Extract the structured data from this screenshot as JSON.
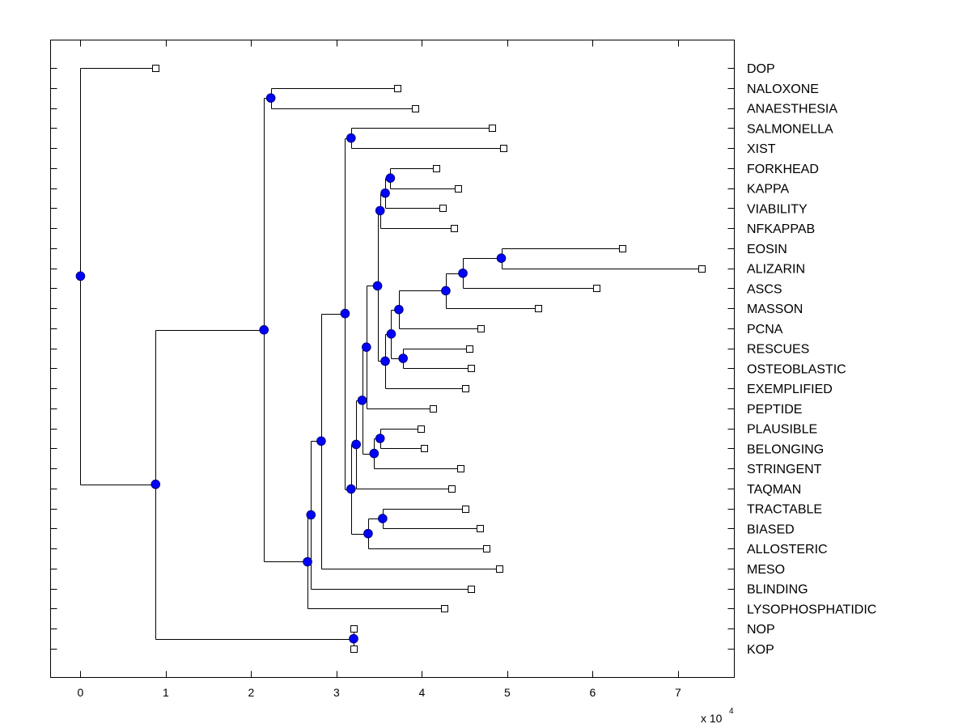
{
  "chart_data": {
    "type": "dendrogram",
    "title": "",
    "xlabel": "",
    "ylabel": "",
    "x_multiplier_label": "x 10",
    "x_multiplier_exponent": "4",
    "xlim": [
      -0.35,
      7.66
    ],
    "x_ticks": [
      0,
      1,
      2,
      3,
      4,
      5,
      6,
      7
    ],
    "x_tick_labels": [
      "0",
      "1",
      "2",
      "3",
      "4",
      "5",
      "6",
      "7"
    ],
    "grid": false,
    "colors": {
      "node_fill": "#0000ff",
      "leaf_fill": "#ffffff",
      "line": "#000000"
    },
    "leaves": [
      {
        "id": "DOP",
        "x": 0.88
      },
      {
        "id": "NALOXONE",
        "x": 3.71
      },
      {
        "id": "ANAESTHESIA",
        "x": 3.92
      },
      {
        "id": "SALMONELLA",
        "x": 4.82
      },
      {
        "id": "XIST",
        "x": 4.95
      },
      {
        "id": "FORKHEAD",
        "x": 4.17
      },
      {
        "id": "KAPPA",
        "x": 4.42
      },
      {
        "id": "VIABILITY",
        "x": 4.24
      },
      {
        "id": "NFKAPPAB",
        "x": 4.38
      },
      {
        "id": "EOSIN",
        "x": 6.35
      },
      {
        "id": "ALIZARIN",
        "x": 7.28
      },
      {
        "id": "ASCS",
        "x": 6.04
      },
      {
        "id": "MASSON",
        "x": 5.36
      },
      {
        "id": "PCNA",
        "x": 4.69
      },
      {
        "id": "RESCUES",
        "x": 4.56
      },
      {
        "id": "OSTEOBLASTIC",
        "x": 4.57
      },
      {
        "id": "EXEMPLIFIED",
        "x": 4.51
      },
      {
        "id": "PEPTIDE",
        "x": 4.13
      },
      {
        "id": "PLAUSIBLE",
        "x": 3.99
      },
      {
        "id": "BELONGING",
        "x": 4.02
      },
      {
        "id": "STRINGENT",
        "x": 4.45
      },
      {
        "id": "TAQMAN",
        "x": 4.35
      },
      {
        "id": "TRACTABLE",
        "x": 4.51
      },
      {
        "id": "BIASED",
        "x": 4.68
      },
      {
        "id": "ALLOSTERIC",
        "x": 4.75
      },
      {
        "id": "MESO",
        "x": 4.91
      },
      {
        "id": "BLINDING",
        "x": 4.57
      },
      {
        "id": "LYSOPHOSPHATIDIC",
        "x": 4.26
      },
      {
        "id": "NOP",
        "x": 3.2
      },
      {
        "id": "KOP",
        "x": 3.2
      }
    ],
    "nodes": [
      {
        "id": "n_root",
        "x": 0.0,
        "children": [
          "DOP",
          "n_b"
        ]
      },
      {
        "id": "n_b",
        "x": 0.88,
        "children": [
          "n_c",
          "n_nopkop"
        ]
      },
      {
        "id": "n_c",
        "x": 2.15,
        "children": [
          "n_nal",
          "n_d"
        ]
      },
      {
        "id": "n_nal",
        "x": 2.23,
        "children": [
          "NALOXONE",
          "ANAESTHESIA"
        ]
      },
      {
        "id": "n_d",
        "x": 2.66,
        "children": [
          "n_e",
          "LYSOPHOSPHATIDIC"
        ]
      },
      {
        "id": "n_e",
        "x": 2.7,
        "children": [
          "n_f",
          "BLINDING"
        ]
      },
      {
        "id": "n_f",
        "x": 2.82,
        "children": [
          "n_g",
          "MESO"
        ]
      },
      {
        "id": "n_g",
        "x": 3.1,
        "children": [
          "n_sal",
          "n_h"
        ]
      },
      {
        "id": "n_sal",
        "x": 3.17,
        "children": [
          "SALMONELLA",
          "XIST"
        ]
      },
      {
        "id": "n_h",
        "x": 3.17,
        "children": [
          "n_i",
          "n_tra"
        ]
      },
      {
        "id": "n_i",
        "x": 3.23,
        "children": [
          "n_j",
          "TAQMAN"
        ]
      },
      {
        "id": "n_j",
        "x": 3.3,
        "children": [
          "n_k",
          "n_str"
        ]
      },
      {
        "id": "n_k",
        "x": 3.35,
        "children": [
          "n_l",
          "PEPTIDE"
        ]
      },
      {
        "id": "n_l",
        "x": 3.48,
        "children": [
          "n_nfk",
          "n_m"
        ]
      },
      {
        "id": "n_nfk",
        "x": 3.51,
        "children": [
          "n_via",
          "NFKAPPAB"
        ]
      },
      {
        "id": "n_via",
        "x": 3.57,
        "children": [
          "n_fork",
          "VIABILITY"
        ]
      },
      {
        "id": "n_fork",
        "x": 3.63,
        "children": [
          "FORKHEAD",
          "KAPPA"
        ]
      },
      {
        "id": "n_m",
        "x": 3.57,
        "children": [
          "n_o",
          "EXEMPLIFIED"
        ]
      },
      {
        "id": "n_o",
        "x": 3.64,
        "children": [
          "n_p",
          "n_res"
        ]
      },
      {
        "id": "n_p",
        "x": 3.73,
        "children": [
          "n_q",
          "PCNA"
        ]
      },
      {
        "id": "n_res",
        "x": 3.78,
        "children": [
          "RESCUES",
          "OSTEOBLASTIC"
        ]
      },
      {
        "id": "n_q",
        "x": 4.28,
        "children": [
          "n_r",
          "MASSON"
        ]
      },
      {
        "id": "n_r",
        "x": 4.48,
        "children": [
          "n_eos",
          "ASCS"
        ]
      },
      {
        "id": "n_eos",
        "x": 4.93,
        "children": [
          "EOSIN",
          "ALIZARIN"
        ]
      },
      {
        "id": "n_str",
        "x": 3.44,
        "children": [
          "n_pla",
          "STRINGENT"
        ]
      },
      {
        "id": "n_pla",
        "x": 3.51,
        "children": [
          "PLAUSIBLE",
          "BELONGING"
        ]
      },
      {
        "id": "n_tra",
        "x": 3.37,
        "children": [
          "n_tb",
          "ALLOSTERIC"
        ]
      },
      {
        "id": "n_tb",
        "x": 3.54,
        "children": [
          "TRACTABLE",
          "BIASED"
        ]
      },
      {
        "id": "n_nopkop",
        "x": 3.2,
        "children": [
          "NOP",
          "KOP"
        ]
      }
    ]
  }
}
